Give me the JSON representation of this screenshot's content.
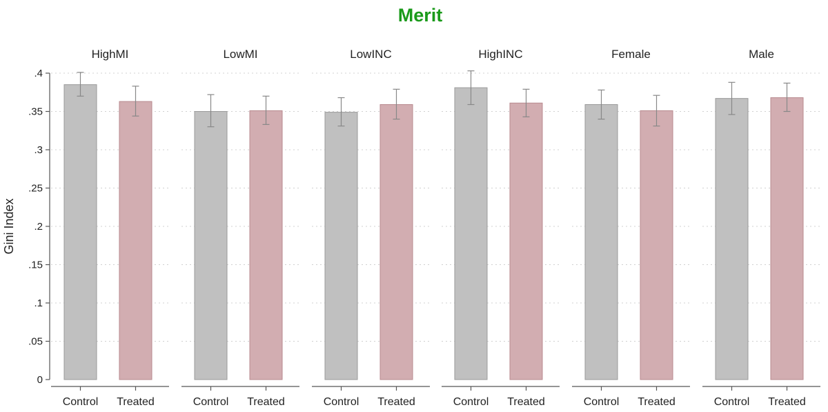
{
  "chart_data": {
    "type": "bar",
    "title": "Merit",
    "ylabel": "Gini Index",
    "ylim": [
      0,
      0.4
    ],
    "yticks": [
      {
        "value": 0,
        "label": "0"
      },
      {
        "value": 0.05,
        "label": ".05"
      },
      {
        "value": 0.1,
        "label": ".1"
      },
      {
        "value": 0.15,
        "label": ".15"
      },
      {
        "value": 0.2,
        "label": ".2"
      },
      {
        "value": 0.25,
        "label": ".25"
      },
      {
        "value": 0.3,
        "label": ".3"
      },
      {
        "value": 0.35,
        "label": ".35"
      },
      {
        "value": 0.4,
        "label": ".4"
      }
    ],
    "grid": true,
    "categories": [
      "Control",
      "Treated"
    ],
    "colors": {
      "Control": "#c0c0c0",
      "Treated": "#d2adb1",
      "title": "#1a9a1a"
    },
    "panels": [
      {
        "name": "HighMI",
        "values": [
          0.385,
          0.363
        ],
        "ci_low": [
          0.37,
          0.344
        ],
        "ci_high": [
          0.401,
          0.383
        ]
      },
      {
        "name": "LowMI",
        "values": [
          0.35,
          0.351
        ],
        "ci_low": [
          0.33,
          0.333
        ],
        "ci_high": [
          0.372,
          0.37
        ]
      },
      {
        "name": "LowINC",
        "values": [
          0.349,
          0.359
        ],
        "ci_low": [
          0.331,
          0.34
        ],
        "ci_high": [
          0.368,
          0.379
        ]
      },
      {
        "name": "HighINC",
        "values": [
          0.381,
          0.361
        ],
        "ci_low": [
          0.359,
          0.343
        ],
        "ci_high": [
          0.403,
          0.379
        ]
      },
      {
        "name": "Female",
        "values": [
          0.359,
          0.351
        ],
        "ci_low": [
          0.34,
          0.331
        ],
        "ci_high": [
          0.378,
          0.371
        ]
      },
      {
        "name": "Male",
        "values": [
          0.367,
          0.368
        ],
        "ci_low": [
          0.346,
          0.35
        ],
        "ci_high": [
          0.388,
          0.387
        ]
      }
    ]
  }
}
